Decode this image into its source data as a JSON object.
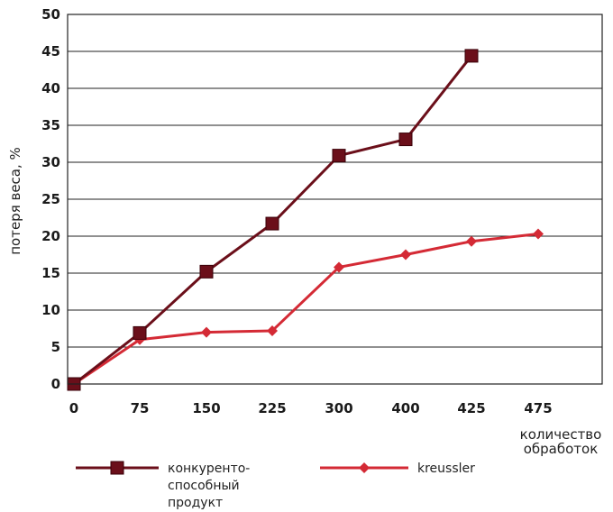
{
  "chart_data": {
    "type": "line",
    "title": "",
    "xlabel": "количество обработок",
    "ylabel": "потеря веса, %",
    "categories": [
      "0",
      "75",
      "150",
      "225",
      "300",
      "400",
      "425",
      "475"
    ],
    "ylim": [
      0,
      50
    ],
    "yticks": [
      "0",
      "5",
      "10",
      "15",
      "20",
      "25",
      "30",
      "35",
      "40",
      "45",
      "50"
    ],
    "grid": "horizontal",
    "legend_position": "bottom",
    "series": [
      {
        "name": "конкуренто-способный продукт",
        "name_lines": [
          "конкуренто-",
          "способный",
          "продукт"
        ],
        "color": "#6b0f1a",
        "marker": "square",
        "values": [
          0,
          6.9,
          15.2,
          21.7,
          30.9,
          33.1,
          44.4,
          null
        ]
      },
      {
        "name": "kreussler",
        "name_lines": [
          "kreussler"
        ],
        "color": "#d42a35",
        "marker": "diamond",
        "values": [
          0,
          6.0,
          7.0,
          7.2,
          15.8,
          17.5,
          19.3,
          20.3
        ]
      }
    ]
  }
}
